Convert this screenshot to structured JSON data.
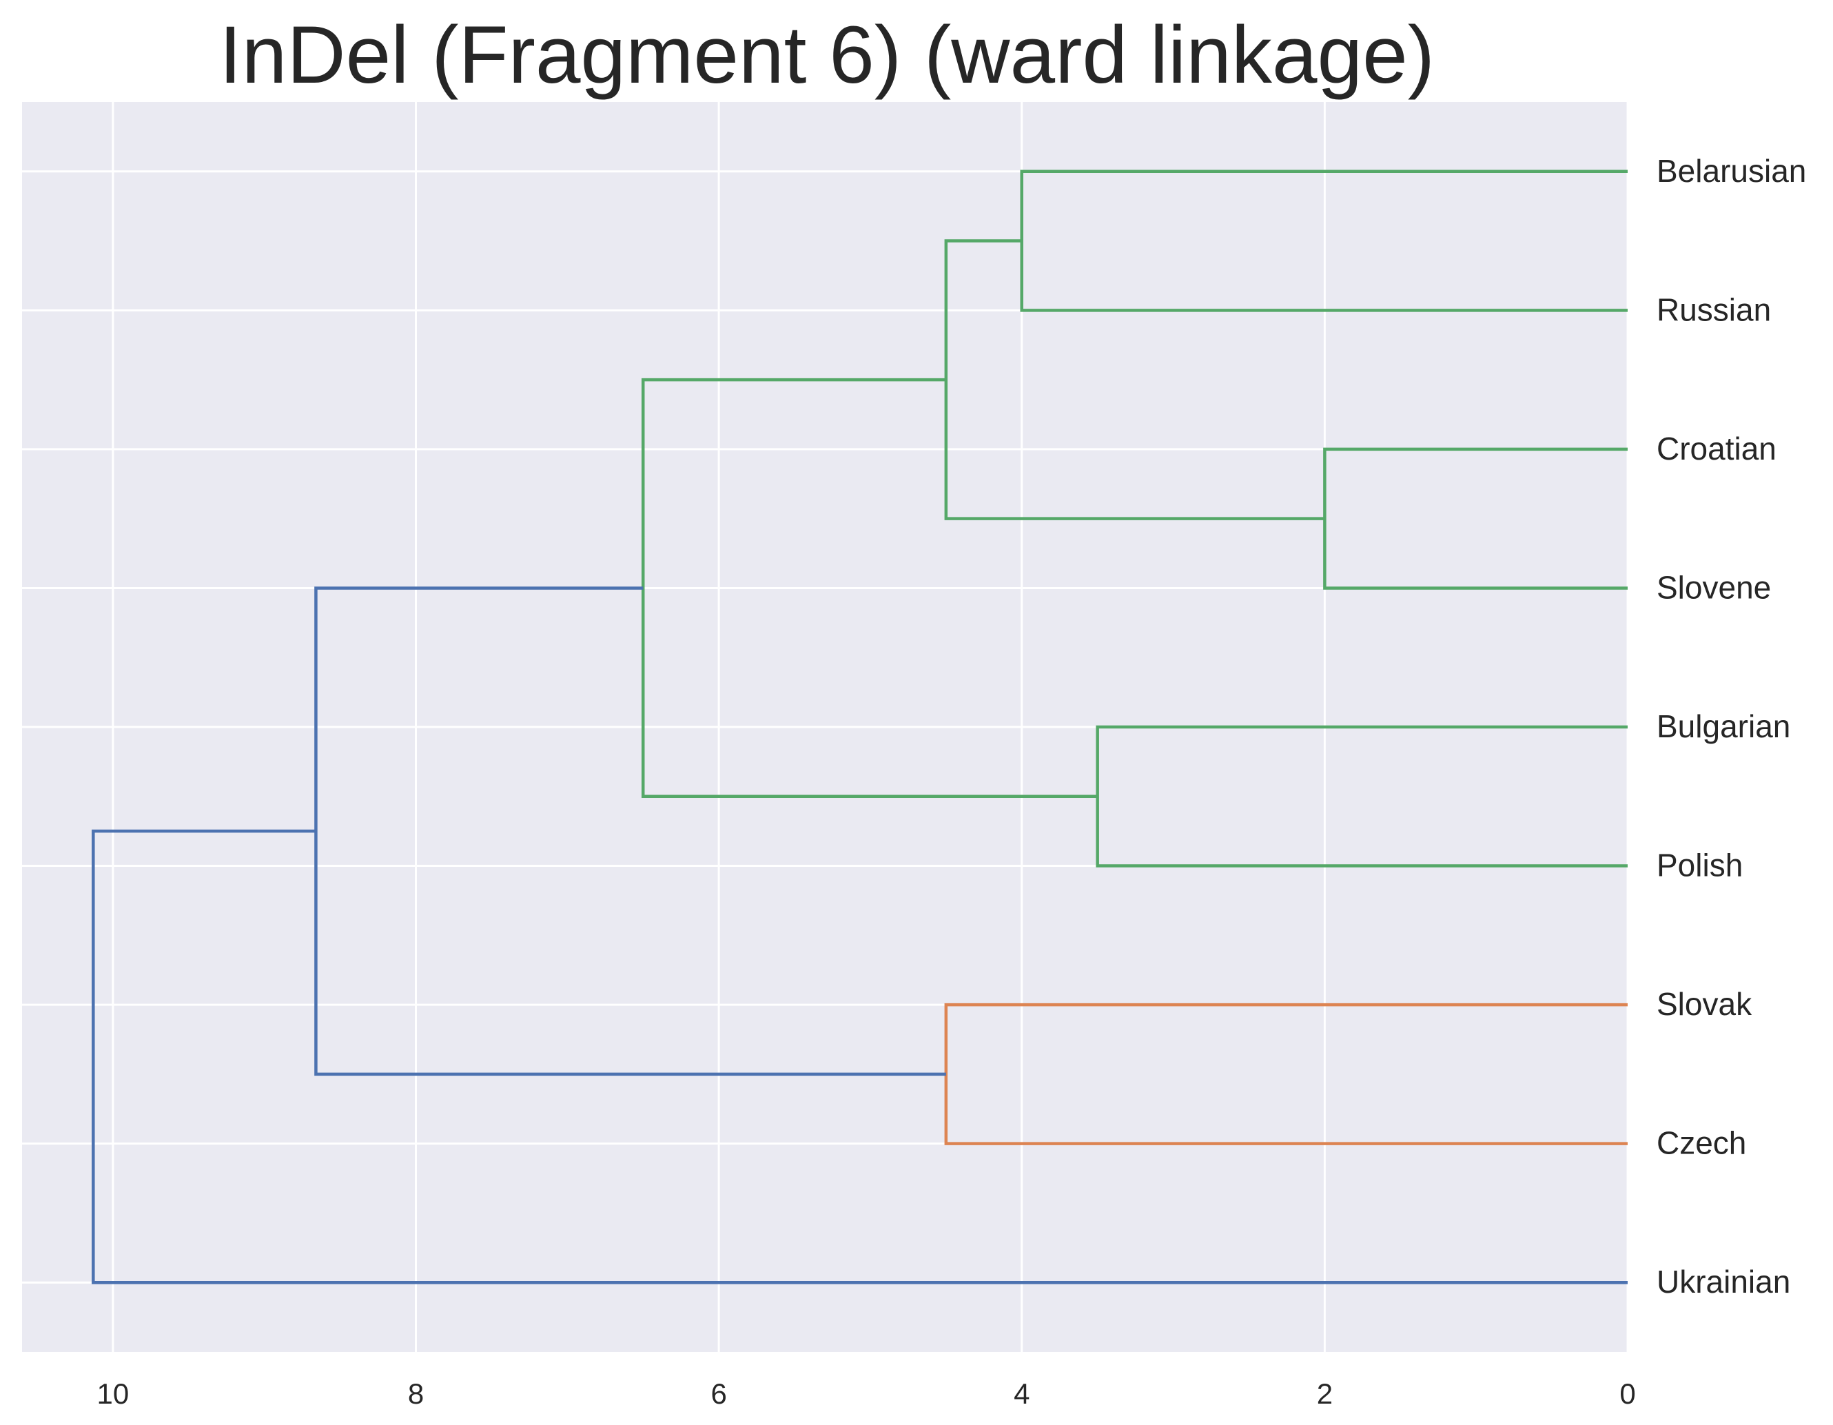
{
  "chart_data": {
    "type": "dendrogram",
    "title": "InDel (Fragment 6) (ward linkage)",
    "orientation": "left",
    "xlabel": "",
    "ylabel": "",
    "xlim": [
      10.6,
      0
    ],
    "xticks": [
      10,
      8,
      6,
      4,
      2,
      0
    ],
    "leaves": [
      "Belarusian",
      "Russian",
      "Croatian",
      "Slovene",
      "Bulgarian",
      "Polish",
      "Slovak",
      "Czech",
      "Ukrainian"
    ],
    "merges": [
      {
        "id": "m1",
        "left": "Croatian",
        "right": "Slovene",
        "distance": 2.0,
        "color": "#55a868"
      },
      {
        "id": "m2",
        "left": "Bulgarian",
        "right": "Polish",
        "distance": 3.5,
        "color": "#55a868"
      },
      {
        "id": "m3",
        "left": "Belarusian",
        "right": "Russian",
        "distance": 4.0,
        "color": "#55a868"
      },
      {
        "id": "m4",
        "left": "Slovak",
        "right": "Czech",
        "distance": 4.5,
        "color": "#dd8452"
      },
      {
        "id": "m5",
        "left": "m3",
        "right": "m1",
        "distance": 4.5,
        "color": "#55a868"
      },
      {
        "id": "m6",
        "left": "m5",
        "right": "m2",
        "distance": 6.5,
        "color": "#55a868"
      },
      {
        "id": "m7",
        "left": "m6",
        "right": "m4",
        "distance": 8.66,
        "color": "#4c72b0"
      },
      {
        "id": "m8",
        "left": "m7",
        "right": "Ukrainian",
        "distance": 10.13,
        "color": "#4c72b0"
      }
    ],
    "cluster_colors": {
      "green": "#55a868",
      "orange": "#dd8452",
      "above_threshold": "#4c72b0"
    },
    "grid": true,
    "background": "#eaeaf2",
    "grid_color": "#ffffff"
  }
}
